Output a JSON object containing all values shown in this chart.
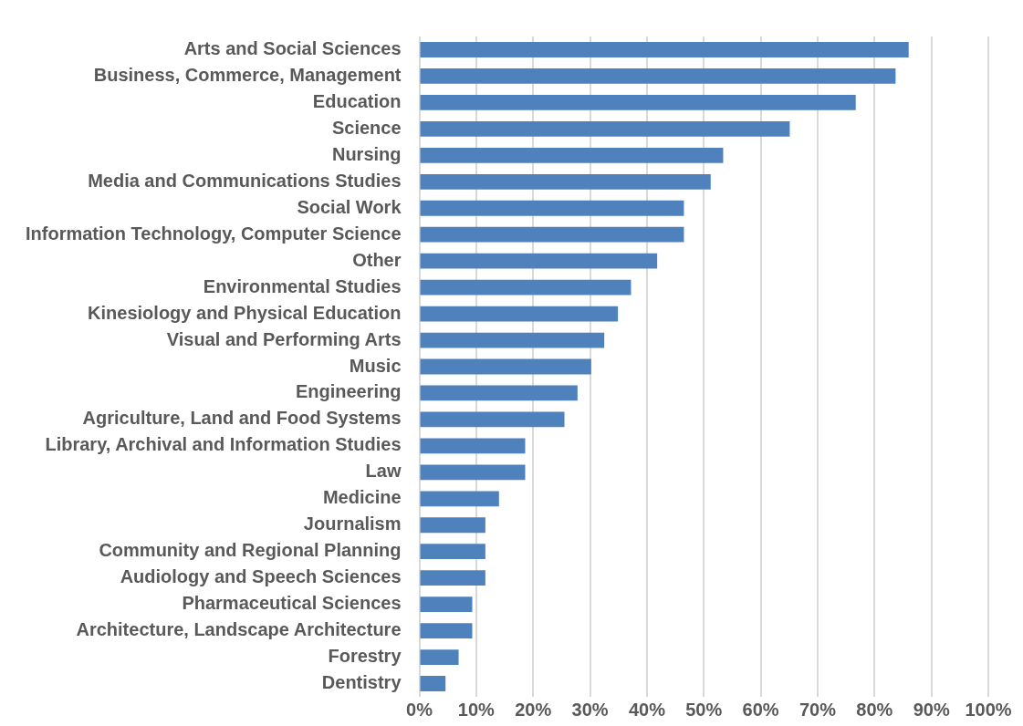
{
  "chart_data": {
    "type": "bar",
    "orientation": "horizontal",
    "categories": [
      "Arts and Social Sciences",
      "Business, Commerce, Management",
      "Education",
      "Science",
      "Nursing",
      "Media and Communications Studies",
      "Social Work",
      "Information Technology, Computer Science",
      "Other",
      "Environmental Studies",
      "Kinesiology and Physical Education",
      "Visual and Performing Arts",
      "Music",
      "Engineering",
      "Agriculture, Land and Food Systems",
      "Library, Archival and Information Studies",
      "Law",
      "Medicine",
      "Journalism",
      "Community and Regional Planning",
      "Audiology and Speech Sciences",
      "Pharmaceutical Sciences",
      "Architecture, Landscape Architecture",
      "Forestry",
      "Dentistry"
    ],
    "values": [
      86.0,
      83.7,
      76.7,
      65.1,
      53.4,
      51.2,
      46.5,
      46.5,
      41.8,
      37.2,
      34.9,
      32.5,
      30.2,
      27.8,
      25.5,
      18.6,
      18.6,
      14.0,
      11.6,
      11.6,
      11.6,
      9.3,
      9.3,
      6.9,
      4.6
    ],
    "color": "#4f81bd",
    "xlim": [
      0,
      100
    ],
    "xticks": [
      {
        "value": 0,
        "label": "0%"
      },
      {
        "value": 10,
        "label": "10%"
      },
      {
        "value": 20,
        "label": "20%"
      },
      {
        "value": 30,
        "label": "30%"
      },
      {
        "value": 40,
        "label": "40%"
      },
      {
        "value": 50,
        "label": "50%"
      },
      {
        "value": 60,
        "label": "60%"
      },
      {
        "value": 70,
        "label": "70%"
      },
      {
        "value": 80,
        "label": "80%"
      },
      {
        "value": 90,
        "label": "90%"
      },
      {
        "value": 100,
        "label": "100%"
      }
    ],
    "grid": "x",
    "legend": false
  }
}
